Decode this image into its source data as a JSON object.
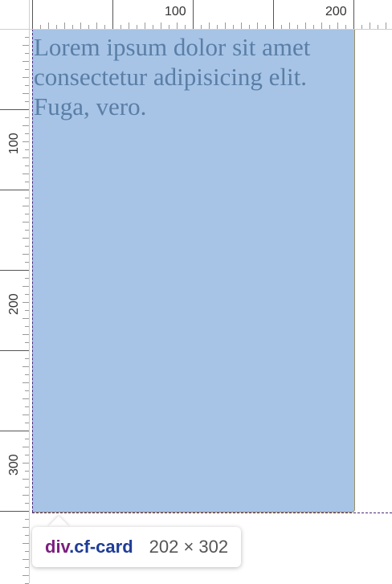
{
  "rulers": {
    "top_labels": [
      "100",
      "200"
    ],
    "left_labels": [
      "100",
      "200",
      "300"
    ]
  },
  "element": {
    "text": "Lorem ipsum dolor sit amet consectetur adipisicing elit. Fuga, vero.",
    "highlight_color": "#a7c4e6",
    "text_color": "#5a7ea6",
    "guide_color": "#4b2a7b"
  },
  "tooltip": {
    "tag": "div",
    "class_name": ".cf-card",
    "dimensions": "202 × 302"
  }
}
